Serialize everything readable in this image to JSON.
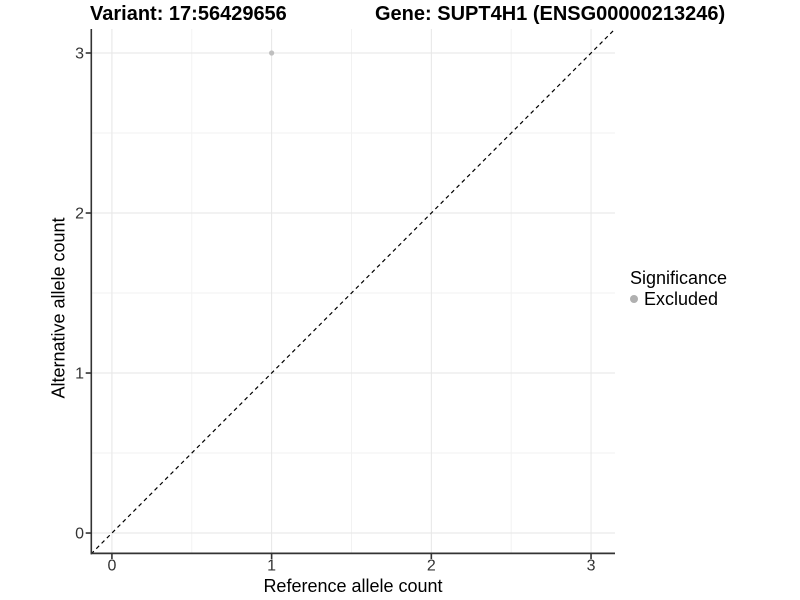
{
  "chart_data": {
    "type": "scatter",
    "titles": {
      "left": "Variant: 17:56429656",
      "right": "Gene: SUPT4H1 (ENSG00000213246)"
    },
    "xlabel": "Reference allele count",
    "ylabel": "Alternative allele count",
    "xlim": [
      -0.131,
      3.15
    ],
    "ylim": [
      -0.131,
      3.15
    ],
    "xticks": [
      0,
      1,
      2,
      3
    ],
    "yticks": [
      0,
      1,
      2,
      3
    ],
    "xticks_minor": [
      0.5,
      1.5,
      2.5
    ],
    "yticks_minor": [
      0.5,
      1.5,
      2.5
    ],
    "grid": {
      "major_color": "#e6e6e6",
      "minor_color": "#f2f2f2"
    },
    "axis_color": "#333333",
    "identity_line": {
      "slope": 1,
      "intercept": 0,
      "style": "dashed",
      "color": "#000000"
    },
    "series": [
      {
        "name": "Excluded",
        "color": "#bfbfbf",
        "points": [
          {
            "x": 1,
            "y": 3
          }
        ]
      }
    ],
    "legend": {
      "title": "Significance",
      "position": "right",
      "items": [
        {
          "label": "Excluded",
          "color": "#b0b0b0"
        }
      ]
    }
  }
}
